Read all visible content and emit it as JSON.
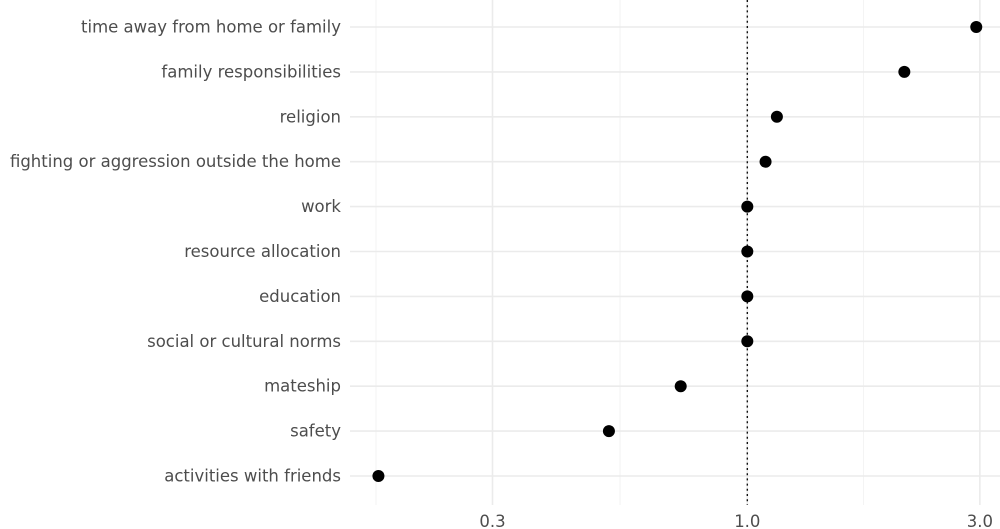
{
  "chart_data": {
    "type": "scatter",
    "title": "",
    "xlabel": "",
    "ylabel": "",
    "x_scale": "log10",
    "xlim": [
      0.153,
      3.3
    ],
    "x_ticks": [
      {
        "value": 0.3,
        "label": "0.3"
      },
      {
        "value": 1.0,
        "label": "1.0"
      },
      {
        "value": 3.0,
        "label": "3.0"
      }
    ],
    "x_minor_grid": [
      0.173,
      0.548,
      1.732
    ],
    "reference_line": {
      "x": 1.0,
      "style": "dotted"
    },
    "categories": [
      "time away from home or family",
      "family responsibilities",
      "religion",
      "fighting or aggression outside the home",
      "work",
      "resource allocation",
      "education",
      "social or cultural norms",
      "mateship",
      "safety",
      "activities with friends"
    ],
    "values": [
      2.95,
      2.1,
      1.15,
      1.09,
      1.0,
      1.0,
      1.0,
      1.0,
      0.73,
      0.52,
      0.175
    ],
    "grid": true,
    "legend": "none",
    "point_color": "#000000"
  }
}
